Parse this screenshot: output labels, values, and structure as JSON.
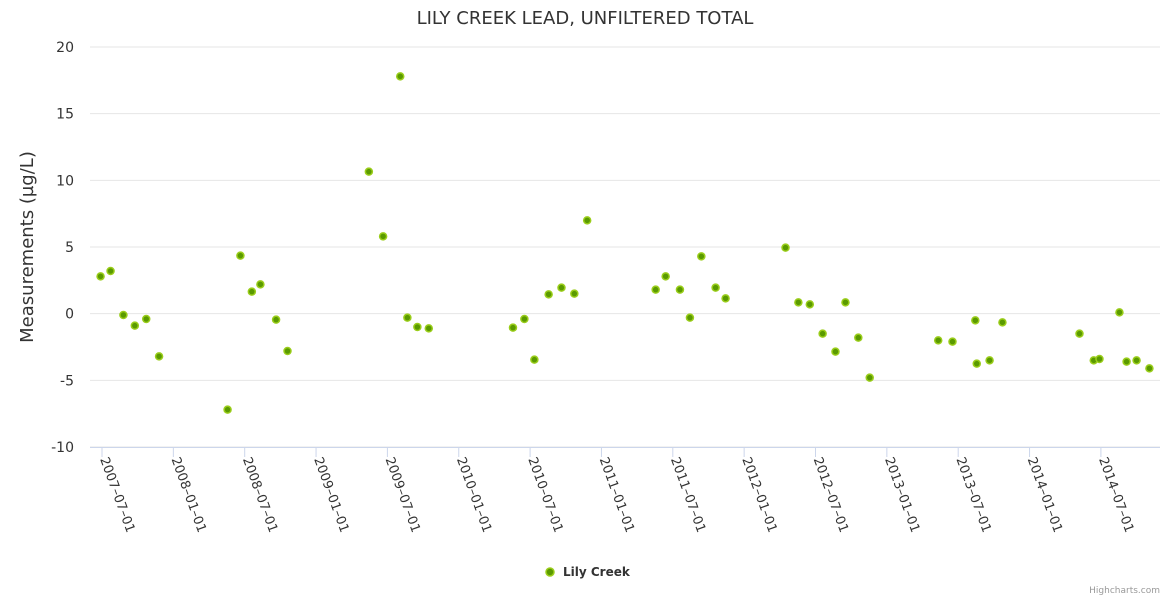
{
  "chart_data": {
    "type": "scatter",
    "title": "LILY CREEK LEAD, UNFILTERED TOTAL",
    "ylabel": "Measurements (µg/L)",
    "xlabel": "",
    "ylim": [
      -10,
      20
    ],
    "yticks": [
      -10,
      -5,
      0,
      5,
      10,
      15,
      20
    ],
    "xlim_year": [
      2007.42,
      2014.92
    ],
    "xticks": [
      {
        "year": 2007.5,
        "label": "2007-07-01"
      },
      {
        "year": 2008.0,
        "label": "2008-01-01"
      },
      {
        "year": 2008.5,
        "label": "2008-07-01"
      },
      {
        "year": 2009.0,
        "label": "2009-01-01"
      },
      {
        "year": 2009.5,
        "label": "2009-07-01"
      },
      {
        "year": 2010.0,
        "label": "2010-01-01"
      },
      {
        "year": 2010.5,
        "label": "2010-07-01"
      },
      {
        "year": 2011.0,
        "label": "2011-01-01"
      },
      {
        "year": 2011.5,
        "label": "2011-07-01"
      },
      {
        "year": 2012.0,
        "label": "2012-01-01"
      },
      {
        "year": 2012.5,
        "label": "2012-07-01"
      },
      {
        "year": 2013.0,
        "label": "2013-01-01"
      },
      {
        "year": 2013.5,
        "label": "2013-07-01"
      },
      {
        "year": 2014.0,
        "label": "2014-01-01"
      },
      {
        "year": 2014.5,
        "label": "2014-07-01"
      }
    ],
    "grid": true,
    "legend_position": "bottom-center",
    "series": [
      {
        "name": "Lily Creek",
        "color": "#5a9a00",
        "border_color": "#9acd1a",
        "points": [
          [
            2007.49,
            2.8
          ],
          [
            2007.56,
            3.2
          ],
          [
            2007.65,
            -0.1
          ],
          [
            2007.73,
            -0.9
          ],
          [
            2007.81,
            -0.4
          ],
          [
            2007.9,
            -3.2
          ],
          [
            2008.38,
            -7.2
          ],
          [
            2008.47,
            4.35
          ],
          [
            2008.55,
            1.65
          ],
          [
            2008.61,
            2.2
          ],
          [
            2008.72,
            -0.45
          ],
          [
            2008.8,
            -2.8
          ],
          [
            2009.37,
            10.65
          ],
          [
            2009.47,
            5.8
          ],
          [
            2009.59,
            17.8
          ],
          [
            2009.64,
            -0.3
          ],
          [
            2009.71,
            -1.0
          ],
          [
            2009.79,
            -1.1
          ],
          [
            2010.38,
            -1.05
          ],
          [
            2010.46,
            -0.4
          ],
          [
            2010.53,
            -3.45
          ],
          [
            2010.63,
            1.45
          ],
          [
            2010.72,
            1.95
          ],
          [
            2010.81,
            1.5
          ],
          [
            2010.9,
            7.0
          ],
          [
            2011.38,
            1.8
          ],
          [
            2011.45,
            2.8
          ],
          [
            2011.55,
            1.8
          ],
          [
            2011.62,
            -0.3
          ],
          [
            2011.7,
            4.3
          ],
          [
            2011.8,
            1.95
          ],
          [
            2011.87,
            1.15
          ],
          [
            2012.29,
            4.95
          ],
          [
            2012.38,
            0.85
          ],
          [
            2012.46,
            0.7
          ],
          [
            2012.55,
            -1.5
          ],
          [
            2012.64,
            -2.85
          ],
          [
            2012.71,
            0.85
          ],
          [
            2012.8,
            -1.8
          ],
          [
            2012.88,
            -4.8
          ],
          [
            2013.36,
            -2.0
          ],
          [
            2013.46,
            -2.1
          ],
          [
            2013.62,
            -0.5
          ],
          [
            2013.63,
            -3.75
          ],
          [
            2013.72,
            -3.5
          ],
          [
            2013.81,
            -0.65
          ],
          [
            2014.35,
            -1.5
          ],
          [
            2014.45,
            -3.5
          ],
          [
            2014.49,
            -3.4
          ],
          [
            2014.63,
            0.1
          ],
          [
            2014.68,
            -3.6
          ],
          [
            2014.75,
            -3.5
          ],
          [
            2014.84,
            -4.1
          ]
        ]
      }
    ]
  },
  "credit": "Highcharts.com"
}
